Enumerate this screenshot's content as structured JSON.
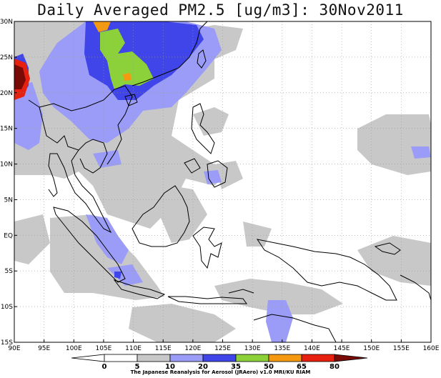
{
  "title": "Daily Averaged PM2.5 [ug/m3]: 30Nov2011",
  "credit": "The Japanese Reanalysis for Aerosol (JRAero) v1.0 MRI/KU RIAM",
  "chart_data": {
    "type": "heatmap",
    "variable": "PM2.5",
    "unit": "ug/m3",
    "date": "30Nov2011",
    "lon_range": [
      90,
      160
    ],
    "lat_range": [
      -15,
      30
    ],
    "x_ticks": [
      "90E",
      "95E",
      "100E",
      "105E",
      "110E",
      "115E",
      "120E",
      "125E",
      "130E",
      "135E",
      "140E",
      "145E",
      "150E",
      "155E",
      "160E"
    ],
    "y_ticks": [
      "30N",
      "25N",
      "20N",
      "15N",
      "10N",
      "5N",
      "EQ",
      "5S",
      "10S",
      "15S"
    ],
    "colorbar_levels": [
      "0",
      "5",
      "10",
      "20",
      "35",
      "50",
      "65",
      "80"
    ],
    "colorbar_colors": [
      "#ffffff",
      "#ffffff",
      "#c8c8c8",
      "#9a9cf7",
      "#3f45e8",
      "#8dd13a",
      "#f59a10",
      "#e82010",
      "#7a0a06"
    ],
    "grid": true
  }
}
